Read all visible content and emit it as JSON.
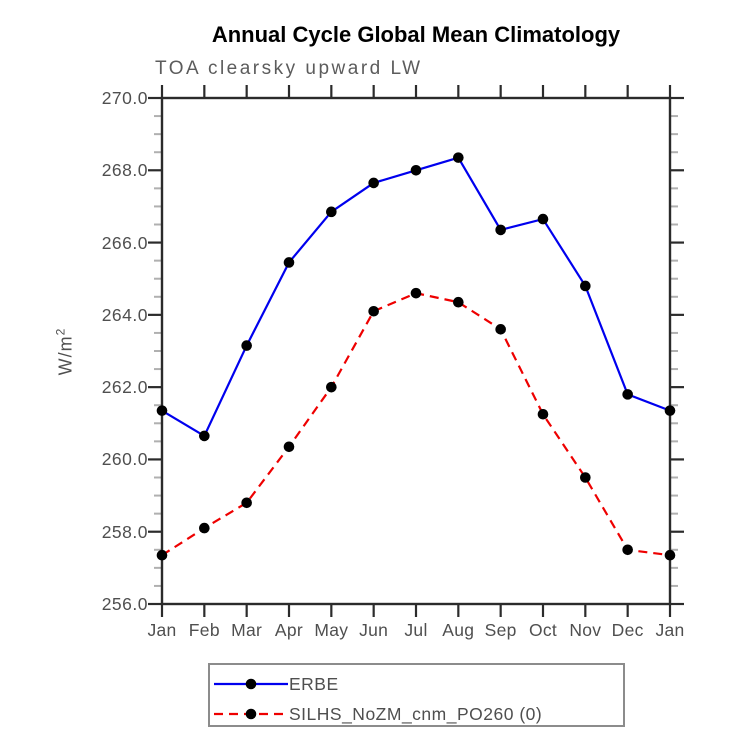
{
  "chart_data": {
    "type": "line",
    "title": "Annual Cycle Global Mean Climatology",
    "subtitle": "TOA clearsky upward LW",
    "ylabel_base": "W/m",
    "ylabel_exponent": "2",
    "xlabel": "",
    "categories": [
      "Jan",
      "Feb",
      "Mar",
      "Apr",
      "May",
      "Jun",
      "Jul",
      "Aug",
      "Sep",
      "Oct",
      "Nov",
      "Dec",
      "Jan"
    ],
    "ylim": [
      256.0,
      270.0
    ],
    "ytick_major": 2.0,
    "ytick_minor": 0.5,
    "ytick_labels": [
      "256.0",
      "258.0",
      "260.0",
      "262.0",
      "264.0",
      "266.0",
      "268.0",
      "270.0"
    ],
    "grid": false,
    "legend_position": "bottom",
    "colors": {
      "axis": "#2b2b2b",
      "minor_tick": "#b0b0b0",
      "text": "#4f4f4f",
      "legend_border": "#8c8c8c",
      "marker": "#000000"
    },
    "series": [
      {
        "name": "ERBE",
        "color": "#0000ee",
        "line_style": "solid",
        "marker": "filled-circle",
        "marker_color": "#000000",
        "values": [
          261.35,
          260.65,
          263.15,
          265.45,
          266.85,
          267.65,
          268.0,
          268.35,
          266.35,
          266.65,
          264.8,
          261.8,
          261.35
        ]
      },
      {
        "name": "SILHS_NoZM_cnm_PO260 (0)",
        "color": "#ee0000",
        "line_style": "dashed",
        "marker": "filled-circle",
        "marker_color": "#000000",
        "values": [
          257.35,
          258.1,
          258.8,
          260.35,
          262.0,
          264.1,
          264.6,
          264.35,
          263.6,
          261.25,
          259.5,
          257.5,
          257.35
        ]
      }
    ]
  }
}
